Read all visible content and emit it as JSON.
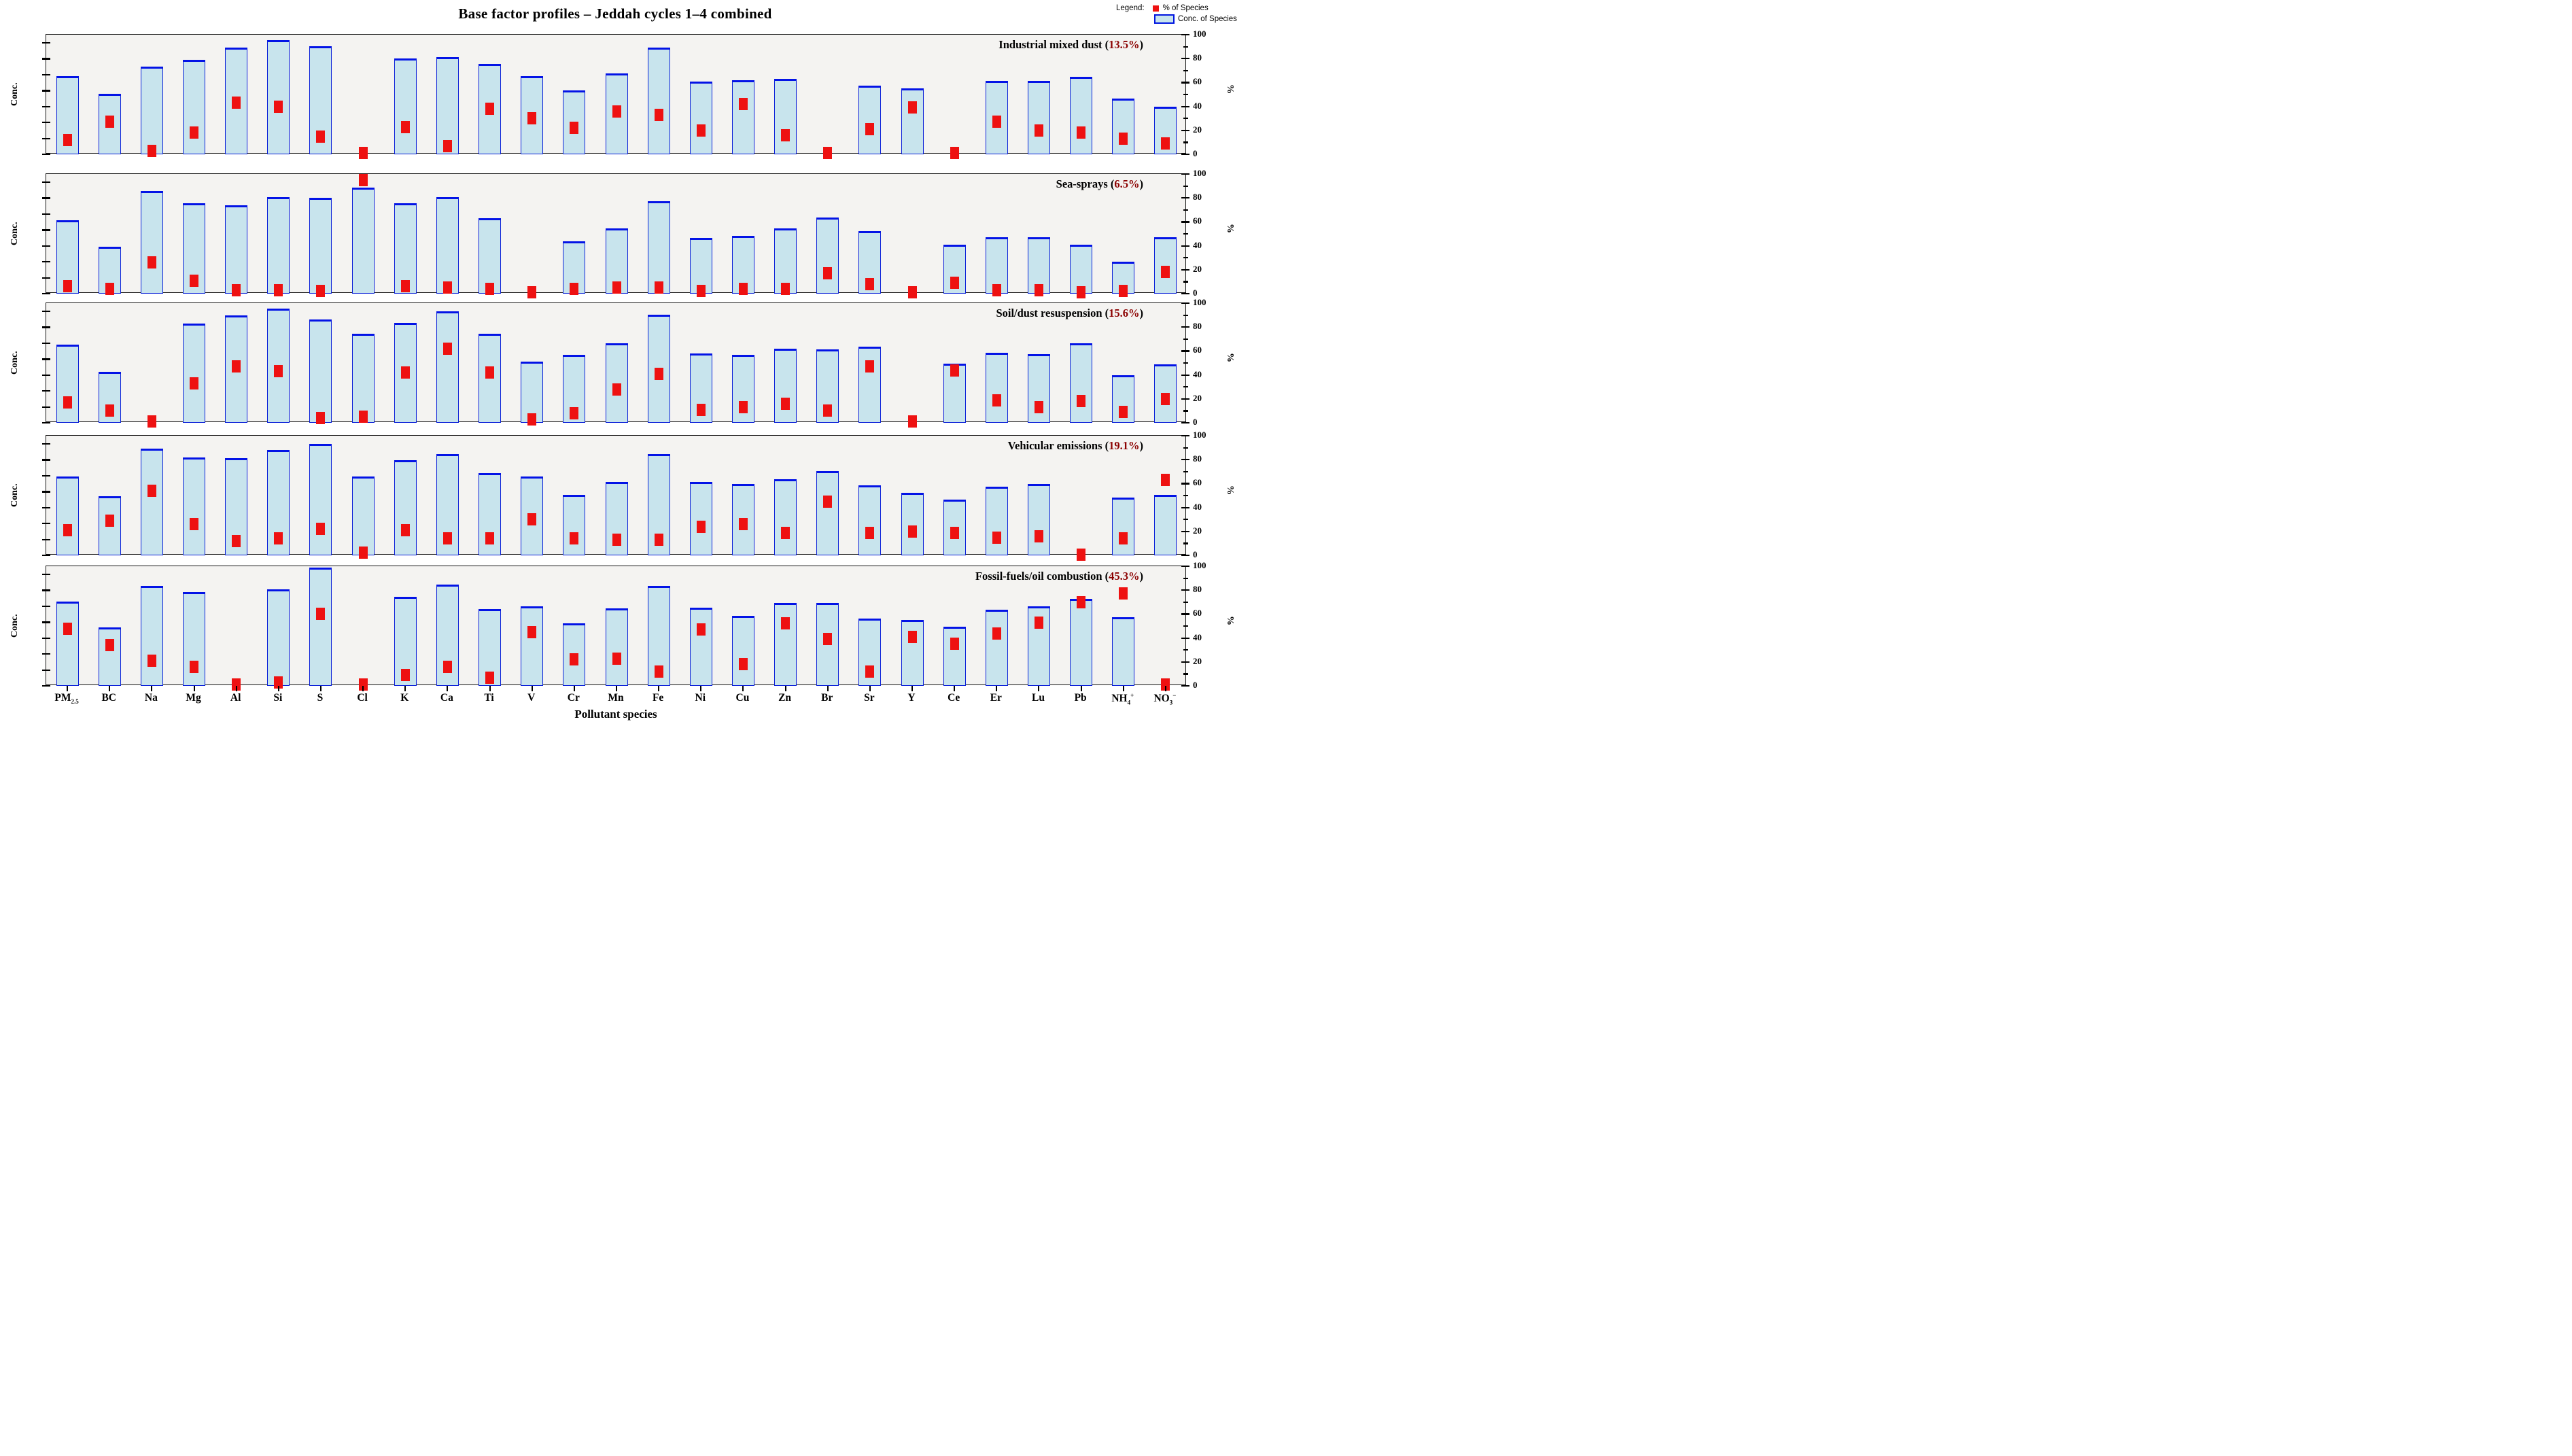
{
  "title": "Base factor profiles – Jeddah cycles 1–4  combined",
  "legend": {
    "label": "Legend:",
    "items": [
      {
        "label": "% of Species",
        "swatch": "red-square",
        "color": "#ee1111"
      },
      {
        "label": "Conc. of Species",
        "swatch": "blue-bar",
        "fill": "#c8e4ed",
        "border": "#0016e0"
      }
    ]
  },
  "xlabel": "Pollutant species",
  "ylabel_left": "Conc.",
  "ylabel_right": "%",
  "left_axis": {
    "scale": "log",
    "tick_exponents": [
      3,
      2,
      1,
      0,
      -1,
      -2,
      -3,
      -4
    ],
    "range_exponents": [
      -4,
      3.5
    ]
  },
  "right_axis": {
    "scale": "linear",
    "ticks": [
      0,
      20,
      40,
      60,
      80,
      100
    ],
    "minor_step": 10,
    "range": [
      0,
      100
    ]
  },
  "colors": {
    "bar_fill": "#c8e4ed",
    "bar_border": "#0a1fd8",
    "marker": "#ee1111",
    "panel_bg": "#f4f3f1",
    "panel_border": "#111111",
    "pct_text": "#8b0000"
  },
  "chart_data": {
    "type": "bar",
    "note": "5 stacked factor-profile panels; bars = concentration (log 1e-4..1e3), red squares = % of species (0-100, right axis)",
    "categories": [
      "PM2.5",
      "BC",
      "Na",
      "Mg",
      "Al",
      "Si",
      "S",
      "Cl",
      "K",
      "Ca",
      "Ti",
      "V",
      "Cr",
      "Mn",
      "Fe",
      "Ni",
      "Cu",
      "Zn",
      "Br",
      "Sr",
      "Y",
      "Ce",
      "Er",
      "Lu",
      "Pb",
      "NH4+",
      "NO3-"
    ],
    "panels": [
      {
        "name": "Industrial mixed dust",
        "pct_label": "13.5%",
        "conc": [
          8,
          0.6,
          30,
          80,
          470,
          1400,
          600,
          0.0001,
          100,
          130,
          45,
          8,
          1,
          12,
          500,
          3.5,
          4.5,
          5.5,
          0.0001,
          2,
          1.3,
          0.0001,
          4,
          4,
          7,
          0.3,
          0.1
        ],
        "pct": [
          12,
          27,
          3,
          18,
          43,
          40,
          15,
          1,
          23,
          7,
          38,
          30,
          22,
          36,
          33,
          20,
          42,
          16,
          1,
          21,
          39,
          1,
          27,
          20,
          18,
          13,
          9
        ]
      },
      {
        "name": "Sea-sprays",
        "pct_label": "6.5%",
        "conc": [
          4,
          0.09,
          280,
          45,
          35,
          115,
          100,
          450,
          45,
          110,
          5.5,
          0.0001,
          0.2,
          1.2,
          60,
          0.3,
          0.4,
          1.2,
          6,
          0.8,
          0.0001,
          0.12,
          0.35,
          0.35,
          0.12,
          0.01,
          0.35
        ],
        "pct": [
          6,
          4,
          26,
          11,
          3,
          3,
          2,
          95,
          6,
          5,
          4,
          1,
          4,
          5,
          5,
          2,
          4,
          4,
          17,
          8,
          1,
          9,
          3,
          3,
          1,
          2,
          18
        ]
      },
      {
        "name": "Soil/dust resuspension",
        "pct_label": "15.6%",
        "conc": [
          8,
          0.15,
          0.0001,
          160,
          550,
          1500,
          290,
          40,
          190,
          1000,
          40,
          0.7,
          1.8,
          10,
          600,
          2.2,
          1.8,
          4.5,
          4,
          6,
          0.0001,
          0.5,
          2.5,
          2,
          10,
          0.1,
          0.45
        ],
        "pct": [
          17,
          10,
          1,
          33,
          47,
          43,
          4,
          5,
          42,
          62,
          42,
          3,
          8,
          28,
          41,
          11,
          13,
          16,
          10,
          47,
          1,
          44,
          19,
          13,
          18,
          9,
          20
        ]
      },
      {
        "name": "Vehicular emissions",
        "pct_label": "19.1%",
        "conc": [
          9,
          0.5,
          500,
          135,
          130,
          420,
          1000,
          9,
          90,
          230,
          15,
          9,
          0.6,
          4,
          220,
          4,
          3,
          6,
          20,
          2.5,
          0.8,
          0.3,
          2,
          3,
          0.0001,
          0.4,
          0.6
        ],
        "pct": [
          21,
          29,
          54,
          26,
          12,
          14,
          22,
          2,
          21,
          14,
          14,
          30,
          14,
          13,
          13,
          24,
          26,
          19,
          45,
          19,
          20,
          19,
          15,
          16,
          0.5,
          14,
          63
        ]
      },
      {
        "name": "Fossil-fuels/oil combustion",
        "pct_label": "45.3%",
        "conc": [
          20,
          0.45,
          180,
          75,
          0.0001,
          110,
          2500,
          0.0001,
          37,
          215,
          6.5,
          10,
          0.8,
          7,
          180,
          8,
          2.4,
          16,
          16,
          1.6,
          1.4,
          0.5,
          6,
          10,
          28,
          2,
          0.0001
        ],
        "pct": [
          48,
          34,
          21,
          16,
          1,
          3,
          60,
          1,
          9,
          16,
          7,
          45,
          22,
          23,
          12,
          47,
          18,
          52,
          39,
          12,
          41,
          35,
          44,
          53,
          70,
          77,
          1
        ]
      }
    ]
  }
}
